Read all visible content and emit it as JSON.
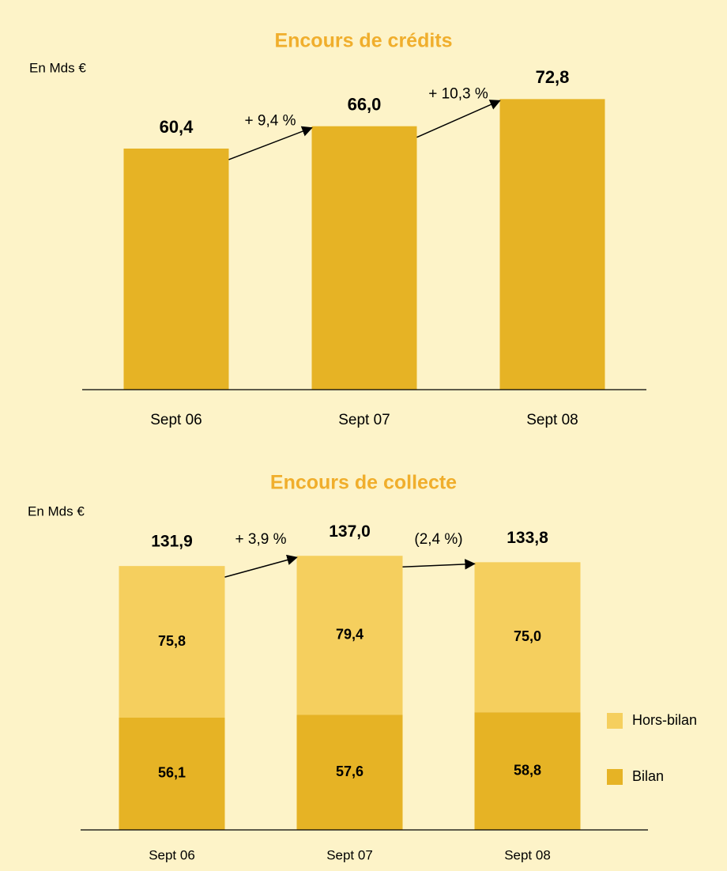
{
  "chart_data": [
    {
      "type": "bar",
      "title": "Encours de crédits",
      "unit_label": "En Mds €",
      "categories": [
        "Sept 06",
        "Sept 07",
        "Sept 08"
      ],
      "values": [
        60.4,
        66.0,
        72.8
      ],
      "value_labels": [
        "60,4",
        "66,0",
        "72,8"
      ],
      "color": "#e6b325",
      "ylim": [
        0,
        80
      ],
      "annotations": [
        "+ 9,4 %",
        "+ 10,3 %"
      ]
    },
    {
      "type": "stacked_bar",
      "title": "Encours de collecte",
      "unit_label": "En Mds €",
      "categories": [
        "Sept 06",
        "Sept 07",
        "Sept 08"
      ],
      "series": [
        {
          "name": "Bilan",
          "color": "#e6b325",
          "values": [
            56.1,
            57.6,
            58.8
          ],
          "value_labels": [
            "56,1",
            "57,6",
            "58,8"
          ]
        },
        {
          "name": "Hors-bilan",
          "color": "#f5cf5e",
          "values": [
            75.8,
            79.4,
            75.0
          ],
          "value_labels": [
            "75,8",
            "79,4",
            "75,0"
          ]
        }
      ],
      "totals": [
        131.9,
        137.0,
        133.8
      ],
      "total_labels": [
        "131,9",
        "137,0",
        "133,8"
      ],
      "ylim": [
        0,
        160
      ],
      "annotations": [
        "+ 3,9 %",
        "(2,4 %)"
      ]
    }
  ]
}
